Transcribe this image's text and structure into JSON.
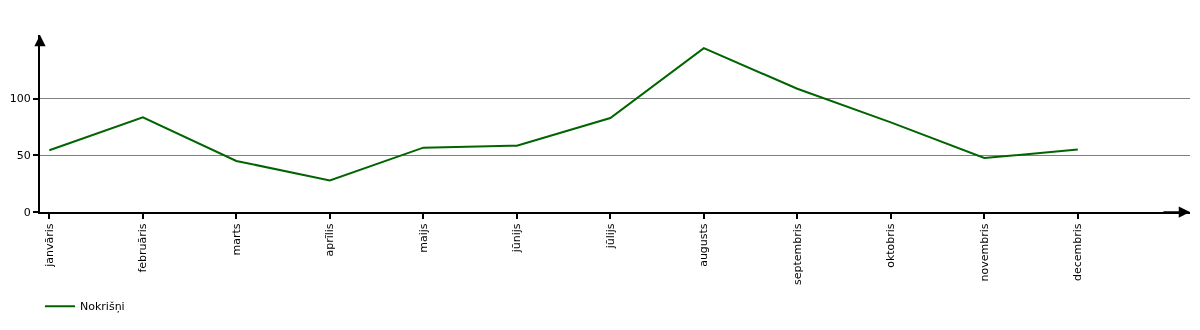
{
  "chart_data": {
    "type": "line",
    "categories": [
      "janvāris",
      "februāris",
      "marts",
      "aprīlis",
      "maijs",
      "jūnijs",
      "jūlijs",
      "augusts",
      "septembris",
      "oktobris",
      "novembris",
      "decembris"
    ],
    "series": [
      {
        "name": "Nokrišņi",
        "color": "#006400",
        "values": [
          54.4,
          83.4,
          45,
          27.8,
          56.7,
          58.5,
          82.8,
          144.4,
          108.6,
          79,
          47.6,
          55
        ]
      }
    ],
    "ylim": [
      0,
      156
    ],
    "yticks": [
      0,
      50,
      100
    ],
    "grid": "y",
    "legend": "bottom left",
    "marker": "none",
    "line_style": "solid"
  }
}
